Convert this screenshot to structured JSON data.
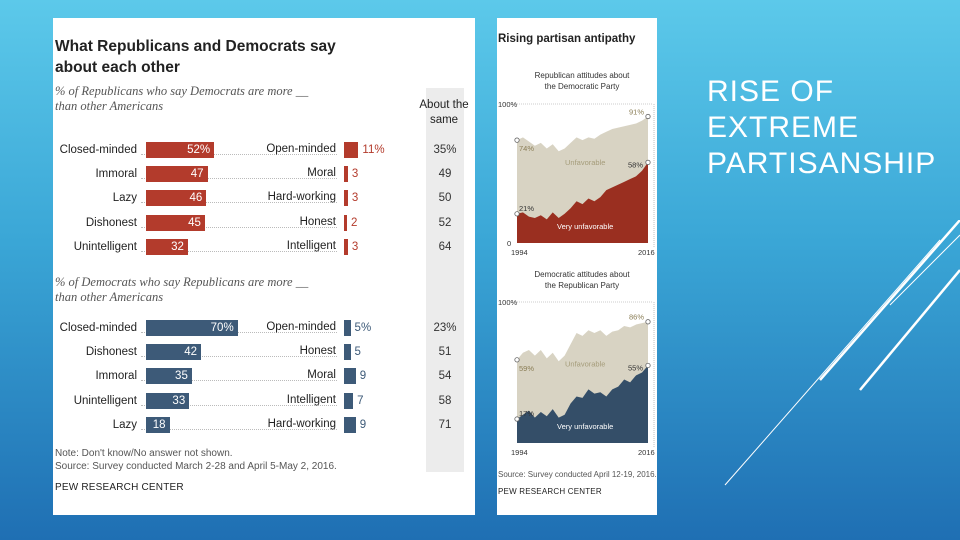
{
  "slide": {
    "title_lines": [
      "RISE OF",
      "EXTREME",
      "PARTISANSHIP"
    ]
  },
  "left_chart": {
    "title_line1": "What Republicans and Democrats say",
    "title_line2": "about each other",
    "about_same_line1": "About the",
    "about_same_line2": "same",
    "note": "Note: Don't know/No answer not shown.",
    "source": "Source: Survey conducted March 2-28 and April 5-May 2, 2016.",
    "org": "PEW RESEARCH CENTER"
  },
  "chart_data": [
    {
      "type": "bar",
      "title": "% of Republicans who say Democrats are more __ than other Americans",
      "subtitle_line1": "% of Republicans who say Democrats are more __",
      "subtitle_line2": "than other Americans",
      "color": "#b33b2c",
      "rows": [
        {
          "neg": "Closed-minded",
          "neg_value": 52,
          "neg_label": "52%",
          "pos": "Open-minded",
          "pos_value": 11,
          "pos_label": "11%",
          "same": "35%"
        },
        {
          "neg": "Immoral",
          "neg_value": 47,
          "neg_label": "47",
          "pos": "Moral",
          "pos_value": 3,
          "pos_label": "3",
          "same": "49"
        },
        {
          "neg": "Lazy",
          "neg_value": 46,
          "neg_label": "46",
          "pos": "Hard-working",
          "pos_value": 3,
          "pos_label": "3",
          "same": "50"
        },
        {
          "neg": "Dishonest",
          "neg_value": 45,
          "neg_label": "45",
          "pos": "Honest",
          "pos_value": 2,
          "pos_label": "2",
          "same": "52"
        },
        {
          "neg": "Unintelligent",
          "neg_value": 32,
          "neg_label": "32",
          "pos": "Intelligent",
          "pos_value": 3,
          "pos_label": "3",
          "same": "64"
        }
      ]
    },
    {
      "type": "bar",
      "title": "% of Democrats who say Republicans are more __ than other Americans",
      "subtitle_line1": "% of Democrats who say Republicans are more __",
      "subtitle_line2": "than other Americans",
      "color": "#3d5a78",
      "rows": [
        {
          "neg": "Closed-minded",
          "neg_value": 70,
          "neg_label": "70%",
          "pos": "Open-minded",
          "pos_value": 5,
          "pos_label": "5%",
          "same": "23%"
        },
        {
          "neg": "Dishonest",
          "neg_value": 42,
          "neg_label": "42",
          "pos": "Honest",
          "pos_value": 5,
          "pos_label": "5",
          "same": "51"
        },
        {
          "neg": "Immoral",
          "neg_value": 35,
          "neg_label": "35",
          "pos": "Moral",
          "pos_value": 9,
          "pos_label": "9",
          "same": "54"
        },
        {
          "neg": "Unintelligent",
          "neg_value": 33,
          "neg_label": "33",
          "pos": "Intelligent",
          "pos_value": 7,
          "pos_label": "7",
          "same": "58"
        },
        {
          "neg": "Lazy",
          "neg_value": 18,
          "neg_label": "18",
          "pos": "Hard-working",
          "pos_value": 9,
          "pos_label": "9",
          "same": "71"
        }
      ]
    },
    {
      "type": "area",
      "title": "Rising partisan antipathy",
      "subtitle_line1": "Republican attitudes about",
      "subtitle_line2": "the Democratic Party",
      "ylim": [
        0,
        100
      ],
      "y_top_label": "100%",
      "y_bottom_label": "0",
      "x_start_label": "1994",
      "x_end_label": "2016",
      "unfavorable_label": "Unfavorable",
      "very_label": "Very unfavorable",
      "unfav_color": "#d8d3c3",
      "very_color": "#9a2f20",
      "annotations": {
        "unfav_start": "74%",
        "unfav_end": "91%",
        "very_start": "21%",
        "very_end": "58%"
      },
      "x": [
        1994,
        1995,
        1996,
        1997,
        1998,
        1999,
        2000,
        2001,
        2002,
        2003,
        2004,
        2005,
        2006,
        2007,
        2008,
        2009,
        2010,
        2011,
        2012,
        2013,
        2014,
        2015,
        2016
      ],
      "unfavorable": [
        74,
        76,
        73,
        70,
        72,
        68,
        71,
        66,
        68,
        72,
        76,
        74,
        76,
        75,
        78,
        80,
        82,
        83,
        84,
        85,
        86,
        88,
        91
      ],
      "very_unfavorable": [
        21,
        22,
        19,
        18,
        20,
        17,
        22,
        18,
        21,
        25,
        30,
        28,
        32,
        30,
        33,
        38,
        40,
        42,
        44,
        46,
        48,
        52,
        58
      ]
    },
    {
      "type": "area",
      "subtitle_line1": "Democratic attitudes about",
      "subtitle_line2": "the Republican Party",
      "ylim": [
        0,
        100
      ],
      "y_top_label": "100%",
      "x_start_label": "1994",
      "x_end_label": "2016",
      "unfavorable_label": "Unfavorable",
      "very_label": "Very unfavorable",
      "unfav_color": "#d8d3c3",
      "very_color": "#344e68",
      "annotations": {
        "unfav_start": "59%",
        "unfav_end": "86%",
        "very_start": "17%",
        "very_end": "55%"
      },
      "x": [
        1994,
        1995,
        1996,
        1997,
        1998,
        1999,
        2000,
        2001,
        2002,
        2003,
        2004,
        2005,
        2006,
        2007,
        2008,
        2009,
        2010,
        2011,
        2012,
        2013,
        2014,
        2015,
        2016
      ],
      "unfavorable": [
        59,
        64,
        66,
        62,
        66,
        60,
        64,
        58,
        62,
        70,
        78,
        76,
        80,
        78,
        80,
        76,
        79,
        80,
        83,
        82,
        84,
        85,
        86
      ],
      "very_unfavorable": [
        17,
        20,
        23,
        18,
        22,
        19,
        24,
        18,
        20,
        28,
        33,
        32,
        38,
        35,
        36,
        33,
        38,
        40,
        45,
        43,
        48,
        50,
        55
      ]
    }
  ],
  "right_chart": {
    "source": "Source: Survey conducted April 12-19, 2016.",
    "org": "PEW RESEARCH CENTER"
  }
}
